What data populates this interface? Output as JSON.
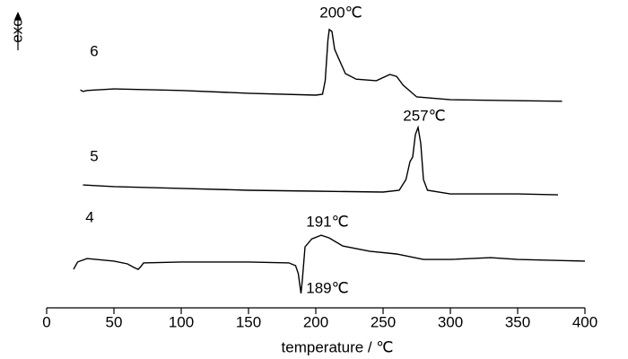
{
  "chart_data": {
    "type": "line",
    "x_label": "temperature / ℃",
    "y_label": "exo",
    "xlim": [
      0,
      400
    ],
    "xticks": [
      0,
      50,
      100,
      150,
      200,
      250,
      300,
      350,
      400
    ],
    "ylim": [
      0,
      100
    ],
    "series": [
      {
        "name": "6",
        "color": "#000000",
        "x": [
          25,
          27,
          30,
          50,
          100,
          150,
          200,
          205,
          207,
          209,
          210,
          212,
          214,
          217,
          222,
          230,
          245,
          255,
          260,
          265,
          275,
          300,
          350,
          383
        ],
        "values": [
          70.8,
          70.3,
          70.6,
          71.1,
          70.6,
          69.7,
          69.1,
          69.4,
          73.8,
          86.9,
          90.4,
          89.8,
          84.0,
          81.0,
          76.1,
          74.3,
          73.8,
          75.8,
          75.2,
          72.3,
          68.5,
          67.6,
          67.3,
          67.1
        ]
      },
      {
        "name": "5",
        "color": "#000000",
        "x": [
          27,
          50,
          100,
          150,
          200,
          250,
          262,
          267,
          270,
          272,
          274,
          276,
          278,
          280,
          283,
          300,
          350,
          380
        ],
        "values": [
          39.9,
          39.4,
          38.8,
          38.2,
          37.9,
          37.6,
          38.2,
          41.7,
          47.5,
          49.0,
          56.3,
          58.6,
          53.4,
          41.7,
          38.2,
          37.0,
          37.0,
          36.7
        ]
      },
      {
        "name": "4",
        "color": "#000000",
        "x": [
          20,
          23,
          30,
          50,
          60,
          65,
          68,
          70,
          72,
          100,
          150,
          180,
          185,
          187,
          189,
          190,
          192,
          197,
          204,
          210,
          220,
          240,
          260,
          280,
          300,
          330,
          350,
          400
        ],
        "values": [
          12.5,
          14.9,
          16.0,
          15.2,
          14.3,
          13.1,
          12.5,
          13.4,
          14.6,
          14.9,
          14.9,
          14.6,
          13.7,
          11.1,
          4.7,
          9.0,
          19.8,
          22.4,
          23.6,
          22.7,
          20.1,
          18.4,
          17.5,
          15.7,
          15.7,
          16.3,
          15.7,
          15.2
        ]
      }
    ],
    "annotations": [
      "200℃",
      "257℃",
      "191℃",
      "189℃"
    ]
  }
}
